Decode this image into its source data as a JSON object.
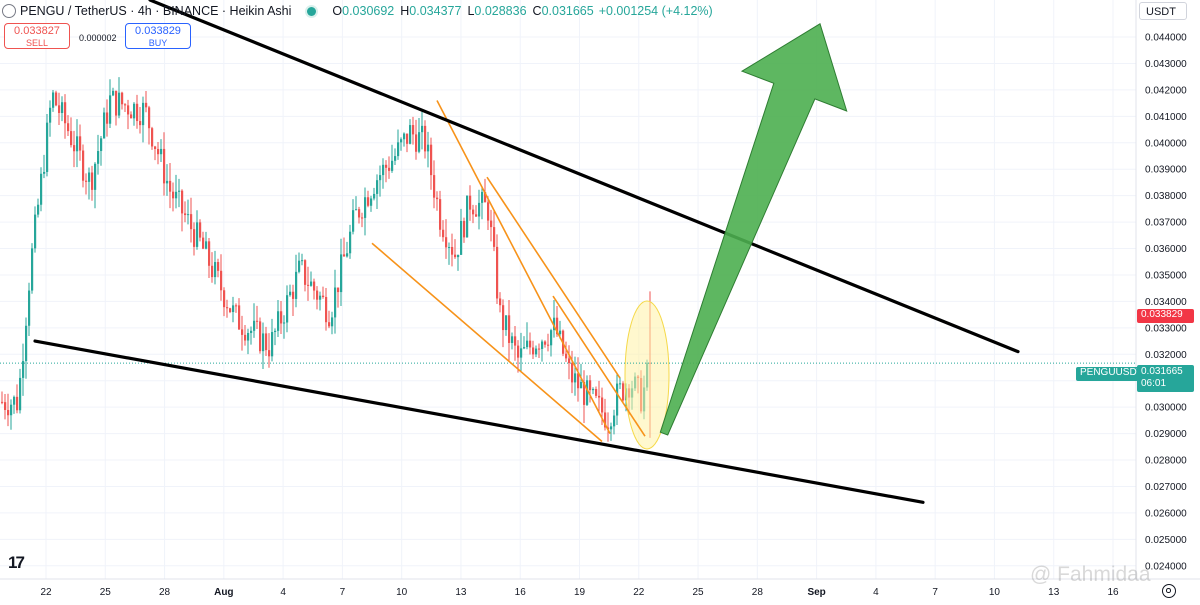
{
  "header": {
    "symbol": "PENGU / TetherUS · 4h · BINANCE · Heikin Ashi",
    "open_label": "O",
    "open": "0.030692",
    "high_label": "H",
    "high": "0.034377",
    "low_label": "L",
    "low": "0.028836",
    "close_label": "C",
    "close": "0.031665",
    "change": "+0.001254 (+4.12%)"
  },
  "trade": {
    "sell_price": "0.033827",
    "sell_label": "SELL",
    "spread": "0.000002",
    "buy_price": "0.033829",
    "buy_label": "BUY"
  },
  "currency_button": "USDT",
  "symbol_tag": "PENGUUSDT",
  "price_tag": {
    "price": "0.031665",
    "countdown": "06:01"
  },
  "ask_tag": "0.033829",
  "watermark": "@ Fahmidaa",
  "colors": {
    "up": "#26a69a",
    "down": "#ef5350",
    "trendline": "#000000",
    "channel": "#f7931a",
    "arrow": "#4caf50",
    "highlight": "#fff3a6"
  },
  "icons": [
    "tradingview-logo-icon",
    "settings-gear-icon",
    "status-dot-icon",
    "symbol-logo-icon"
  ],
  "chart_data": {
    "type": "candlestick",
    "style": "Heikin Ashi",
    "timeframe": "4h",
    "ylim": [
      0.0235,
      0.0454
    ],
    "y_ticks": [
      "0.044000",
      "0.043000",
      "0.042000",
      "0.041000",
      "0.040000",
      "0.039000",
      "0.038000",
      "0.037000",
      "0.036000",
      "0.035000",
      "0.034000",
      "0.033000",
      "0.032000",
      "0.031000",
      "0.030000",
      "0.029000",
      "0.028000",
      "0.027000",
      "0.026000",
      "0.025000",
      "0.024000"
    ],
    "x_ticks": [
      "22",
      "25",
      "28",
      "Aug",
      "4",
      "7",
      "10",
      "13",
      "16",
      "19",
      "22",
      "25",
      "28",
      "Sep",
      "4",
      "7",
      "10",
      "13",
      "16"
    ],
    "grid": true,
    "ohlc_anchors": [
      {
        "t": 0,
        "price": 0.0302
      },
      {
        "t": 18,
        "price": 0.0302
      },
      {
        "t": 30,
        "price": 0.0352
      },
      {
        "t": 52,
        "price": 0.0418
      },
      {
        "t": 68,
        "price": 0.0405
      },
      {
        "t": 90,
        "price": 0.0385
      },
      {
        "t": 110,
        "price": 0.0416
      },
      {
        "t": 145,
        "price": 0.0412
      },
      {
        "t": 170,
        "price": 0.0382
      },
      {
        "t": 200,
        "price": 0.0362
      },
      {
        "t": 235,
        "price": 0.0334
      },
      {
        "t": 270,
        "price": 0.0323
      },
      {
        "t": 300,
        "price": 0.0352
      },
      {
        "t": 330,
        "price": 0.0336
      },
      {
        "t": 355,
        "price": 0.0372
      },
      {
        "t": 375,
        "price": 0.0386
      },
      {
        "t": 395,
        "price": 0.0395
      },
      {
        "t": 410,
        "price": 0.0404
      },
      {
        "t": 425,
        "price": 0.04
      },
      {
        "t": 440,
        "price": 0.0372
      },
      {
        "t": 455,
        "price": 0.0358
      },
      {
        "t": 470,
        "price": 0.0378
      },
      {
        "t": 488,
        "price": 0.0375
      },
      {
        "t": 500,
        "price": 0.0335
      },
      {
        "t": 518,
        "price": 0.0318
      },
      {
        "t": 535,
        "price": 0.0325
      },
      {
        "t": 555,
        "price": 0.033
      },
      {
        "t": 570,
        "price": 0.0312
      },
      {
        "t": 590,
        "price": 0.0303
      },
      {
        "t": 608,
        "price": 0.0296
      },
      {
        "t": 618,
        "price": 0.0305
      },
      {
        "t": 630,
        "price": 0.031
      },
      {
        "t": 642,
        "price": 0.0303
      },
      {
        "t": 650,
        "price": 0.0317
      }
    ],
    "last_close": 0.031665,
    "ask_price": 0.033829,
    "trendlines": [
      {
        "name": "upper-wedge-line",
        "from": {
          "t": 150,
          "price": 0.0454
        },
        "to": {
          "t": 1018,
          "price": 0.0321
        }
      },
      {
        "name": "lower-wedge-line",
        "from": {
          "t": 35,
          "price": 0.0325
        },
        "to": {
          "t": 923,
          "price": 0.0264
        }
      }
    ],
    "channel_lines": [
      {
        "from": {
          "t": 437,
          "price": 0.0416
        },
        "to": {
          "t": 610,
          "price": 0.029
        }
      },
      {
        "from": {
          "t": 372,
          "price": 0.0362
        },
        "to": {
          "t": 602,
          "price": 0.0287
        }
      },
      {
        "from": {
          "t": 487,
          "price": 0.0387
        },
        "to": {
          "t": 620,
          "price": 0.0311
        }
      },
      {
        "from": {
          "t": 553,
          "price": 0.0342
        },
        "to": {
          "t": 645,
          "price": 0.0289
        }
      }
    ],
    "projection_arrow": {
      "from": {
        "t": 664,
        "price": 0.029
      },
      "tip": {
        "t": 820,
        "price": 0.0445
      }
    }
  }
}
